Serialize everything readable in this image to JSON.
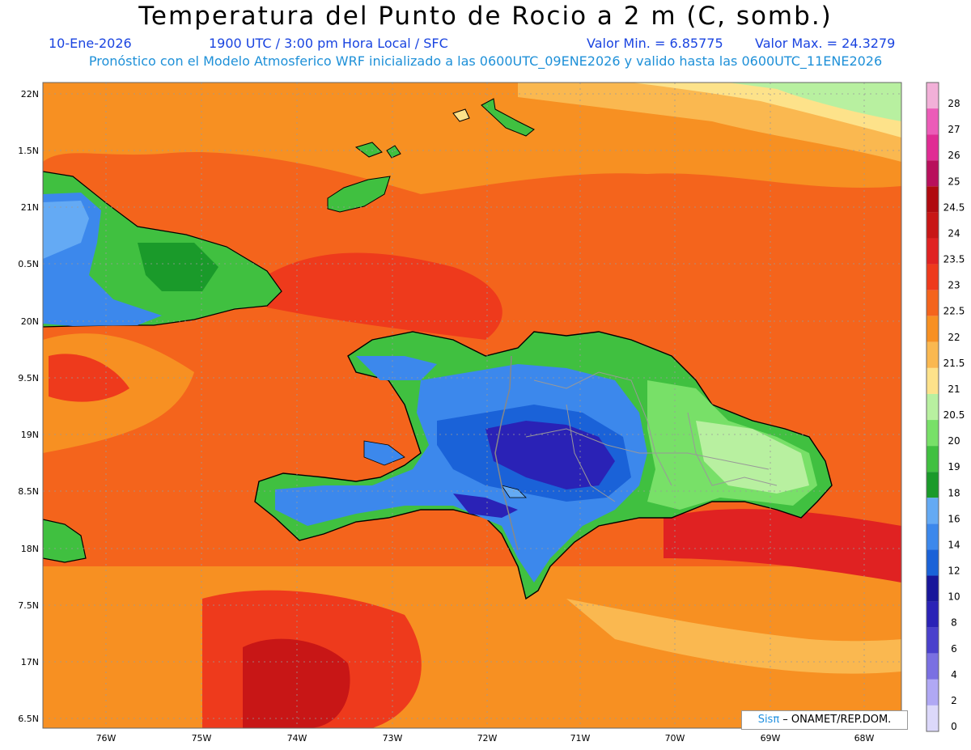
{
  "header": {
    "title": "Temperatura del Punto de Rocio a 2 m (C, somb.)",
    "date": "10-Ene-2026",
    "time": "1900 UTC / 3:00 pm Hora Local / SFC",
    "vmin": "Valor Min. = 6.85775",
    "vmax": "Valor Max. = 24.3279",
    "model": "Pronóstico con el Modelo Atmosferico WRF inicializado a las 0600UTC_09ENE2026 y valido hasta las  0600UTC_11ENE2026"
  },
  "axes": {
    "lat": [
      "22N",
      "1.5N",
      "21N",
      "0.5N",
      "20N",
      "9.5N",
      "19N",
      "8.5N",
      "18N",
      "7.5N",
      "17N",
      "6.5N"
    ],
    "lon": [
      "76W",
      "75W",
      "74W",
      "73W",
      "72W",
      "71W",
      "70W",
      "69W",
      "68W"
    ]
  },
  "colorbar": [
    {
      "v": "28",
      "c": "#f2b0d8"
    },
    {
      "v": "27",
      "c": "#ec5cb8"
    },
    {
      "v": "26",
      "c": "#e02c94"
    },
    {
      "v": "25",
      "c": "#b8105c"
    },
    {
      "v": "24.5",
      "c": "#b00a10"
    },
    {
      "v": "24",
      "c": "#c81616"
    },
    {
      "v": "23.5",
      "c": "#e02222"
    },
    {
      "v": "23",
      "c": "#ee3a1c"
    },
    {
      "v": "22.5",
      "c": "#f4641c"
    },
    {
      "v": "22",
      "c": "#f79022"
    },
    {
      "v": "21.5",
      "c": "#fab850"
    },
    {
      "v": "21",
      "c": "#fde28a"
    },
    {
      "v": "20.5",
      "c": "#b8f0a0"
    },
    {
      "v": "20",
      "c": "#78e068"
    },
    {
      "v": "19",
      "c": "#40c040"
    },
    {
      "v": "18",
      "c": "#1a9a2a"
    },
    {
      "v": "16",
      "c": "#64aaf4"
    },
    {
      "v": "14",
      "c": "#3c88ec"
    },
    {
      "v": "12",
      "c": "#1a62d8"
    },
    {
      "v": "10",
      "c": "#18169a"
    },
    {
      "v": "8",
      "c": "#2a22b6"
    },
    {
      "v": "6",
      "c": "#4a40cc"
    },
    {
      "v": "4",
      "c": "#7a70e2"
    },
    {
      "v": "2",
      "c": "#b0a8f4"
    },
    {
      "v": "0",
      "c": "#dcd8fa"
    }
  ],
  "credit": {
    "sis": "Sisπ",
    "org": " – ONAMET/REP.DOM."
  }
}
